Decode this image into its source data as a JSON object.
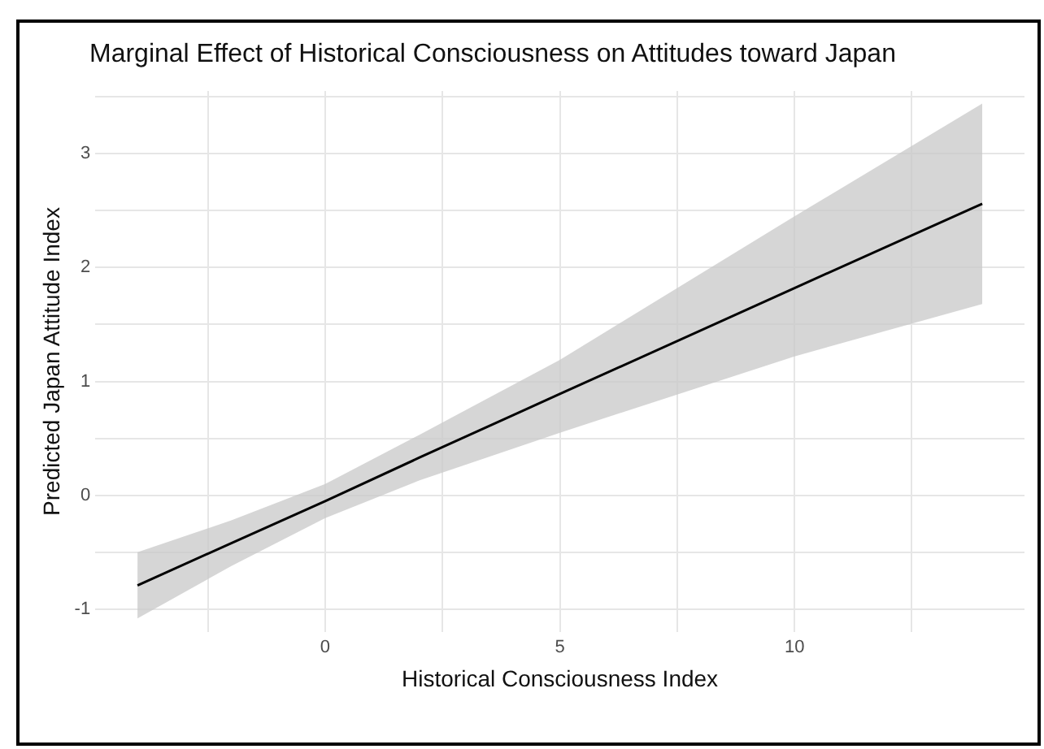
{
  "chart_data": {
    "type": "line",
    "title": "Marginal Effect of Historical Consciousness on Attitudes toward Japan",
    "xlabel": "Historical Consciousness Index",
    "ylabel": "Predicted Japan Attitude Index",
    "x": [
      -4,
      -2,
      0,
      2,
      5,
      10,
      14
    ],
    "series": [
      {
        "color": "#000000",
        "values": [
          -0.79,
          -0.42,
          -0.05,
          0.33,
          0.89,
          1.82,
          2.56
        ],
        "lower": [
          -1.08,
          -0.62,
          -0.2,
          0.13,
          0.55,
          1.22,
          1.68
        ],
        "upper": [
          -0.5,
          -0.22,
          0.1,
          0.53,
          1.19,
          2.45,
          3.44
        ]
      }
    ],
    "xlim": [
      -4.9,
      14.9
    ],
    "ylim": [
      -1.2,
      3.55
    ],
    "xticks": [
      {
        "value": -2.5,
        "label": null
      },
      0,
      {
        "value": 2.5,
        "label": null
      },
      5,
      {
        "value": 7.5,
        "label": null
      },
      10,
      {
        "value": 12.5,
        "label": null
      }
    ],
    "yticks": [
      -1,
      {
        "value": -0.5,
        "label": null
      },
      0,
      {
        "value": 0.5,
        "label": null
      },
      1,
      {
        "value": 1.5,
        "label": null
      },
      2,
      {
        "value": 2.5,
        "label": null
      },
      3,
      {
        "value": 3.5,
        "label": null
      }
    ],
    "grid": true,
    "legend": false,
    "line_style": "solid",
    "marker": "none"
  }
}
